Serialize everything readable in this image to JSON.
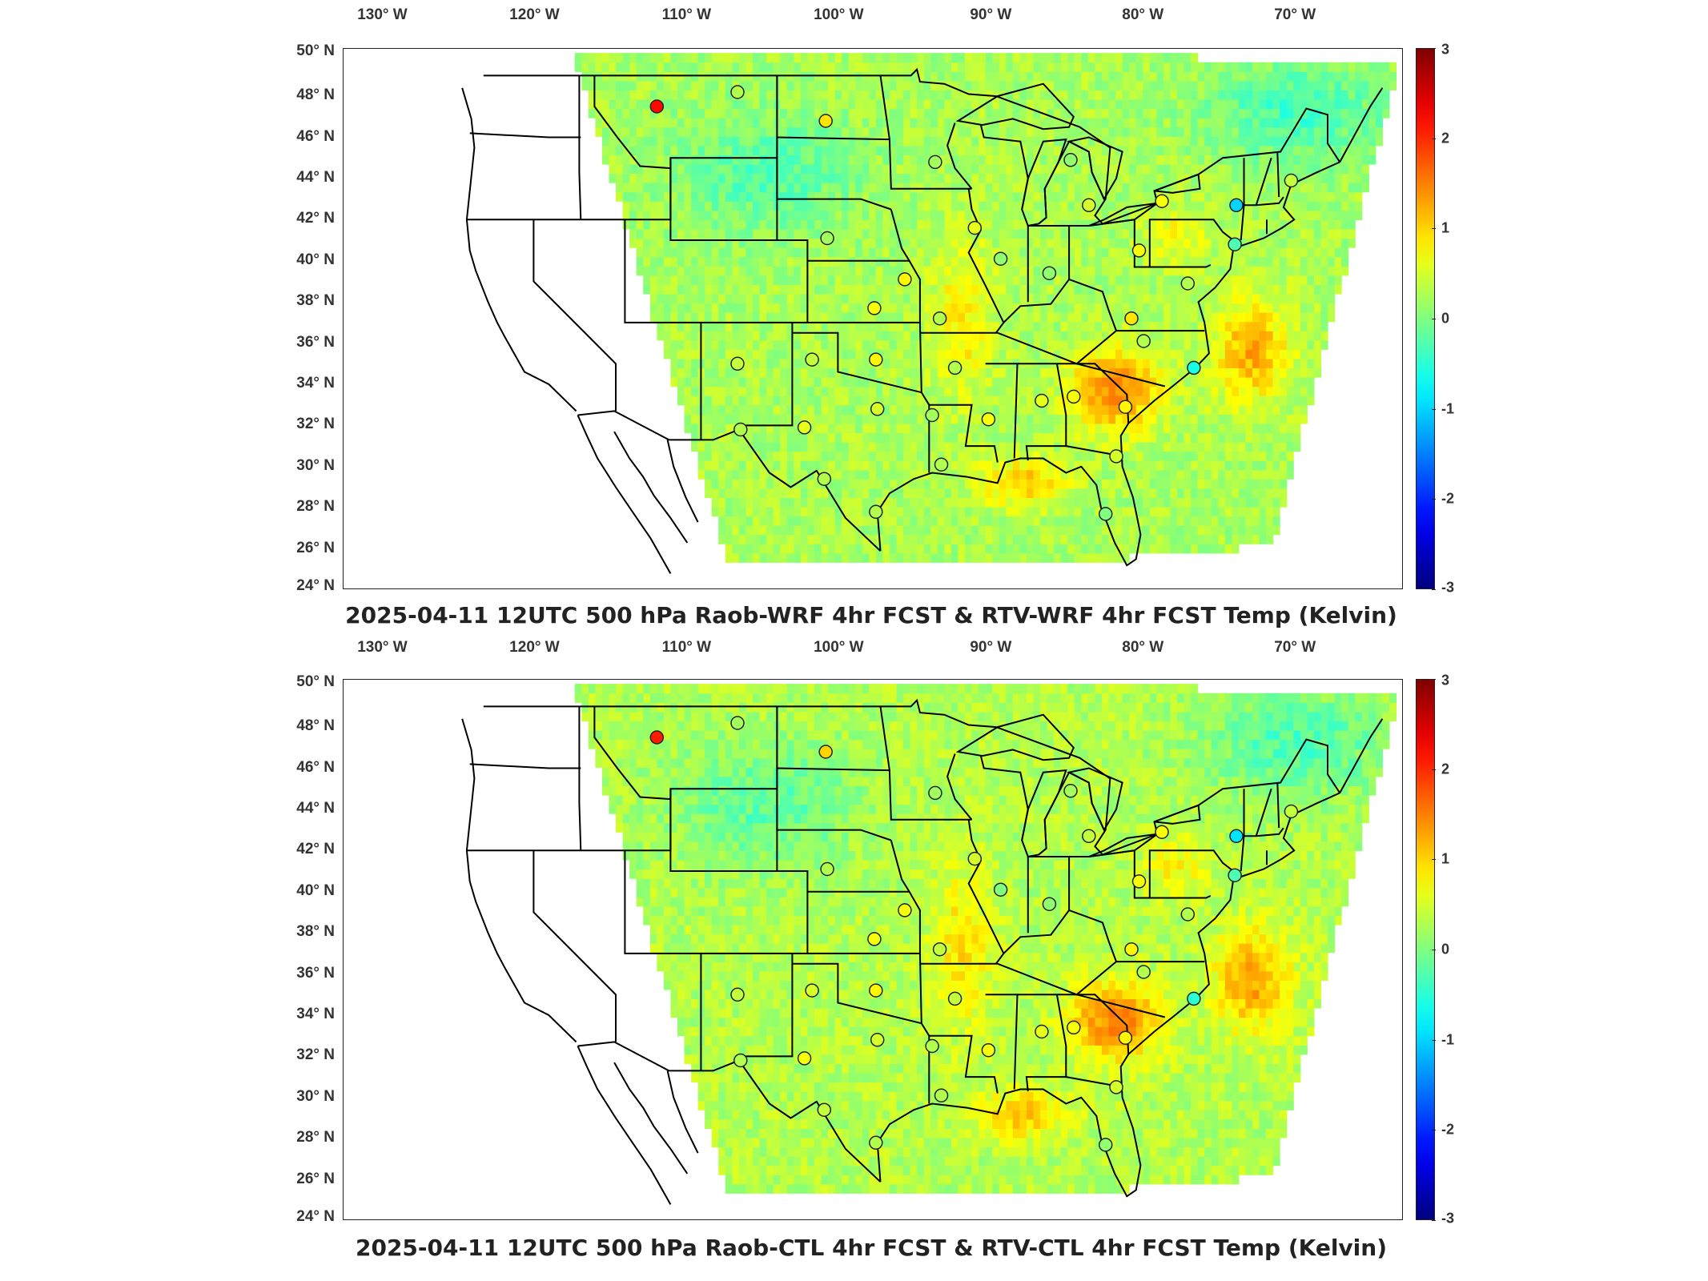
{
  "panels": [
    {
      "title": "2025-04-11 12UTC 500 hPa Raob-WRF 4hr FCST & RTV-WRF 4hr FCST Temp (Kelvin)",
      "stations": [
        {
          "lon": -111.9,
          "lat": 47.5,
          "value": 2.2
        },
        {
          "lon": -106.6,
          "lat": 48.2,
          "value": 0.3
        },
        {
          "lon": -100.8,
          "lat": 46.8,
          "value": 0.9
        },
        {
          "lon": -93.6,
          "lat": 44.8,
          "value": 0.2
        },
        {
          "lon": -84.7,
          "lat": 44.9,
          "value": 0.1
        },
        {
          "lon": -83.5,
          "lat": 42.7,
          "value": 0.5
        },
        {
          "lon": -78.7,
          "lat": 42.9,
          "value": 0.7
        },
        {
          "lon": -73.8,
          "lat": 42.7,
          "value": -1.0
        },
        {
          "lon": -70.2,
          "lat": 43.9,
          "value": 0.4
        },
        {
          "lon": -100.7,
          "lat": 41.1,
          "value": 0.2
        },
        {
          "lon": -91.0,
          "lat": 41.6,
          "value": 0.6
        },
        {
          "lon": -89.3,
          "lat": 40.1,
          "value": 0.1
        },
        {
          "lon": -86.1,
          "lat": 39.4,
          "value": 0.1
        },
        {
          "lon": -80.2,
          "lat": 40.5,
          "value": 0.7
        },
        {
          "lon": -77.0,
          "lat": 38.9,
          "value": 0.3
        },
        {
          "lon": -73.9,
          "lat": 40.8,
          "value": -0.3
        },
        {
          "lon": -95.6,
          "lat": 39.1,
          "value": 0.8
        },
        {
          "lon": -97.6,
          "lat": 37.7,
          "value": 0.7
        },
        {
          "lon": -93.3,
          "lat": 37.2,
          "value": 0.3
        },
        {
          "lon": -80.7,
          "lat": 37.2,
          "value": 0.9
        },
        {
          "lon": -79.9,
          "lat": 36.1,
          "value": 0.3
        },
        {
          "lon": -76.6,
          "lat": 34.8,
          "value": -0.6
        },
        {
          "lon": -106.6,
          "lat": 35.0,
          "value": 0.4
        },
        {
          "lon": -101.7,
          "lat": 35.2,
          "value": 0.4
        },
        {
          "lon": -97.5,
          "lat": 35.2,
          "value": 0.8
        },
        {
          "lon": -92.3,
          "lat": 34.8,
          "value": 0.3
        },
        {
          "lon": -86.6,
          "lat": 33.2,
          "value": 0.6
        },
        {
          "lon": -84.5,
          "lat": 33.4,
          "value": 0.7
        },
        {
          "lon": -81.1,
          "lat": 32.9,
          "value": 0.8
        },
        {
          "lon": -106.4,
          "lat": 31.8,
          "value": 0.3
        },
        {
          "lon": -102.2,
          "lat": 31.9,
          "value": 0.6
        },
        {
          "lon": -97.4,
          "lat": 32.8,
          "value": 0.5
        },
        {
          "lon": -93.8,
          "lat": 32.5,
          "value": 0.2
        },
        {
          "lon": -90.1,
          "lat": 32.3,
          "value": 0.7
        },
        {
          "lon": -100.9,
          "lat": 29.4,
          "value": 0.3
        },
        {
          "lon": -97.5,
          "lat": 27.8,
          "value": 0.3
        },
        {
          "lon": -93.2,
          "lat": 30.1,
          "value": 0.3
        },
        {
          "lon": -81.7,
          "lat": 30.5,
          "value": 0.5
        },
        {
          "lon": -82.4,
          "lat": 27.7,
          "value": 0.0
        }
      ]
    },
    {
      "title": "2025-04-11 12UTC 500 hPa Raob-CTL 4hr FCST & RTV-CTL 4hr FCST Temp (Kelvin)",
      "stations": [
        {
          "lon": -111.9,
          "lat": 47.5,
          "value": 2.1
        },
        {
          "lon": -106.6,
          "lat": 48.2,
          "value": 0.2
        },
        {
          "lon": -100.8,
          "lat": 46.8,
          "value": 1.0
        },
        {
          "lon": -93.6,
          "lat": 44.8,
          "value": 0.2
        },
        {
          "lon": -84.7,
          "lat": 44.9,
          "value": 0.2
        },
        {
          "lon": -83.5,
          "lat": 42.7,
          "value": 0.4
        },
        {
          "lon": -78.7,
          "lat": 42.9,
          "value": 0.7
        },
        {
          "lon": -73.8,
          "lat": 42.7,
          "value": -0.9
        },
        {
          "lon": -70.2,
          "lat": 43.9,
          "value": 0.4
        },
        {
          "lon": -100.7,
          "lat": 41.1,
          "value": 0.3
        },
        {
          "lon": -91.0,
          "lat": 41.6,
          "value": 0.5
        },
        {
          "lon": -89.3,
          "lat": 40.1,
          "value": 0.0
        },
        {
          "lon": -86.1,
          "lat": 39.4,
          "value": 0.1
        },
        {
          "lon": -80.2,
          "lat": 40.5,
          "value": 0.7
        },
        {
          "lon": -77.0,
          "lat": 38.9,
          "value": 0.3
        },
        {
          "lon": -73.9,
          "lat": 40.8,
          "value": -0.3
        },
        {
          "lon": -95.6,
          "lat": 39.1,
          "value": 0.7
        },
        {
          "lon": -97.6,
          "lat": 37.7,
          "value": 0.7
        },
        {
          "lon": -93.3,
          "lat": 37.2,
          "value": 0.4
        },
        {
          "lon": -80.7,
          "lat": 37.2,
          "value": 0.8
        },
        {
          "lon": -79.9,
          "lat": 36.1,
          "value": 0.3
        },
        {
          "lon": -76.6,
          "lat": 34.8,
          "value": -0.5
        },
        {
          "lon": -106.6,
          "lat": 35.0,
          "value": 0.4
        },
        {
          "lon": -101.7,
          "lat": 35.2,
          "value": 0.5
        },
        {
          "lon": -97.5,
          "lat": 35.2,
          "value": 0.8
        },
        {
          "lon": -92.3,
          "lat": 34.8,
          "value": 0.4
        },
        {
          "lon": -86.6,
          "lat": 33.2,
          "value": 0.6
        },
        {
          "lon": -84.5,
          "lat": 33.4,
          "value": 0.7
        },
        {
          "lon": -81.1,
          "lat": 32.9,
          "value": 0.8
        },
        {
          "lon": -106.4,
          "lat": 31.8,
          "value": 0.3
        },
        {
          "lon": -102.2,
          "lat": 31.9,
          "value": 0.7
        },
        {
          "lon": -97.4,
          "lat": 32.8,
          "value": 0.5
        },
        {
          "lon": -93.8,
          "lat": 32.5,
          "value": 0.3
        },
        {
          "lon": -90.1,
          "lat": 32.3,
          "value": 0.7
        },
        {
          "lon": -100.9,
          "lat": 29.4,
          "value": 0.4
        },
        {
          "lon": -97.5,
          "lat": 27.8,
          "value": 0.3
        },
        {
          "lon": -93.2,
          "lat": 30.1,
          "value": 0.3
        },
        {
          "lon": -81.7,
          "lat": 30.5,
          "value": 0.5
        },
        {
          "lon": -82.4,
          "lat": 27.7,
          "value": 0.1
        }
      ]
    }
  ],
  "lon_ticks": [
    "130° W",
    "120° W",
    "110° W",
    "100° W",
    "90° W",
    "80° W",
    "70° W"
  ],
  "lat_ticks": [
    "50° N",
    "48° N",
    "46° N",
    "44° N",
    "42° N",
    "40° N",
    "38° N",
    "36° N",
    "34° N",
    "32° N",
    "30° N",
    "28° N",
    "26° N",
    "24° N"
  ],
  "colorbar": {
    "ticks": [
      "3",
      "2",
      "1",
      "0",
      "-1",
      "-2",
      "-3"
    ],
    "min": -3,
    "max": 3
  },
  "colors": {
    "cold": "#00008f",
    "cool": "#00bfff",
    "neutral": "#7fff7f",
    "warm": "#ffbf00",
    "hot": "#8f0000"
  }
}
